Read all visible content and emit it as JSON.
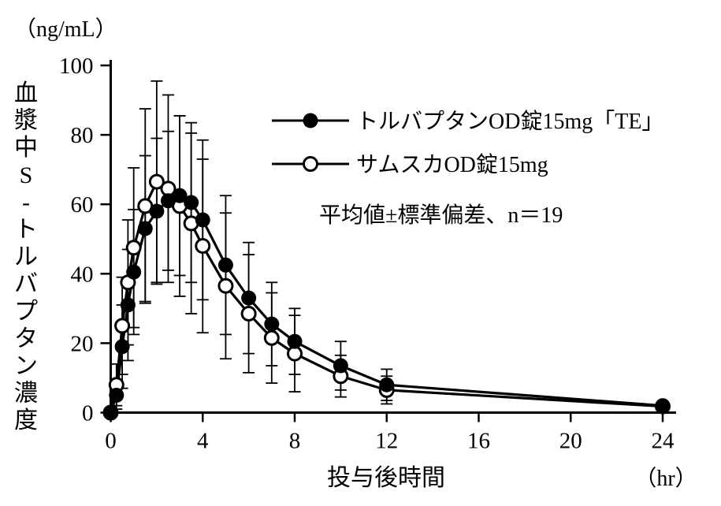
{
  "figure": {
    "y_axis_unit_label": "（ng/mL）",
    "y_axis_title_vertical": "血漿中S-トルバプタン濃度",
    "x_axis_title": "投与後時間",
    "x_axis_unit_label": "（hr）",
    "annotation": "平均値±標準偏差、n＝19",
    "ink_color": "#000000",
    "background_color": "#ffffff"
  },
  "chart_data": {
    "type": "line",
    "title": "",
    "xlabel": "投与後時間",
    "xlabel_unit": "（hr）",
    "ylabel": "血漿中S-トルバプタン濃度",
    "ylabel_unit": "（ng/mL）",
    "xlim": [
      0,
      24
    ],
    "ylim": [
      0,
      100
    ],
    "x_ticks": [
      0,
      4,
      8,
      12,
      16,
      20,
      24
    ],
    "y_ticks": [
      0,
      20,
      40,
      60,
      80,
      100
    ],
    "grid": false,
    "legend_position": "inside-top-right",
    "error_bars": "mean ± SD",
    "n": 19,
    "x": [
      0,
      0.25,
      0.5,
      0.75,
      1,
      1.5,
      2,
      2.5,
      3,
      3.5,
      4,
      5,
      6,
      7,
      8,
      10,
      12,
      24
    ],
    "series": [
      {
        "name": "サムスカOD錠15mg",
        "marker": "open-circle",
        "color": "#000000",
        "values": [
          0,
          8,
          25,
          37.5,
          47.5,
          59.5,
          66.5,
          64.5,
          59.5,
          54.5,
          48,
          36.5,
          28.5,
          21.5,
          17,
          10.5,
          6.5,
          1.8
        ],
        "sd": [
          0,
          6,
          14,
          18,
          23,
          28,
          29,
          27,
          26,
          26,
          25,
          21,
          17,
          13,
          11,
          6,
          4,
          1
        ]
      },
      {
        "name": "トルバプタンOD錠15mg「TE」",
        "marker": "filled-circle",
        "color": "#000000",
        "values": [
          0,
          5,
          19,
          31,
          40.5,
          53,
          58,
          61,
          62.5,
          60.5,
          55.5,
          42.5,
          33,
          25.5,
          20.5,
          13.5,
          8,
          2
        ],
        "sd": [
          0,
          4,
          12,
          16,
          18,
          21,
          21,
          20,
          23,
          23,
          23,
          20,
          16,
          12,
          9.5,
          7,
          4.5,
          1
        ]
      }
    ],
    "legend_order": [
      "トルバプタンOD錠15mg「TE」",
      "サムスカOD錠15mg"
    ]
  }
}
